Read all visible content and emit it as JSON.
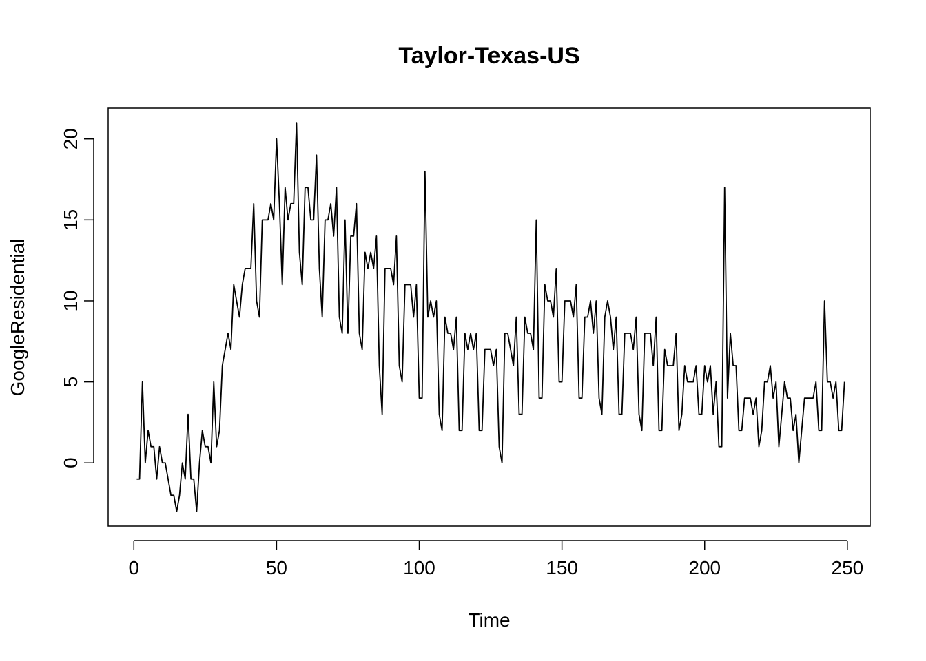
{
  "chart_data": {
    "type": "line",
    "title": "Taylor-Texas-US",
    "xlabel": "Time",
    "ylabel": "GoogleResidential",
    "xlim": [
      -9,
      258
    ],
    "ylim": [
      -3.9,
      21.9
    ],
    "x_ticks": [
      0,
      50,
      100,
      150,
      200,
      250
    ],
    "y_ticks": [
      0,
      5,
      10,
      15,
      20
    ],
    "grid": false,
    "legend": "none",
    "line_color": "#000000",
    "x_start": 1,
    "series": [
      {
        "values": [
          -1,
          -1,
          5,
          0,
          2,
          1,
          1,
          -1,
          1,
          0,
          0,
          -1,
          -2,
          -2,
          -3,
          -2,
          0,
          -1,
          3,
          -1,
          -1,
          -3,
          0,
          2,
          1,
          1,
          0,
          5,
          1,
          2,
          6,
          7,
          8,
          7,
          11,
          10,
          9,
          11,
          12,
          12,
          12,
          16,
          10,
          9,
          15,
          15,
          15,
          16,
          15,
          20,
          16,
          11,
          17,
          15,
          16,
          16,
          21,
          13,
          11,
          17,
          17,
          15,
          15,
          19,
          12,
          9,
          15,
          15,
          16,
          14,
          17,
          9,
          8,
          15,
          8,
          14,
          14,
          16,
          8,
          7,
          13,
          12,
          13,
          12,
          14,
          6,
          3,
          12,
          12,
          12,
          11,
          14,
          6,
          5,
          11,
          11,
          11,
          9,
          11,
          4,
          4,
          18,
          9,
          10,
          9,
          10,
          3,
          2,
          9,
          8,
          8,
          7,
          9,
          2,
          2,
          8,
          7,
          8,
          7,
          8,
          2,
          2,
          7,
          7,
          7,
          6,
          7,
          1,
          0,
          8,
          8,
          7,
          6,
          9,
          3,
          3,
          9,
          8,
          8,
          7,
          15,
          4,
          4,
          11,
          10,
          10,
          9,
          12,
          5,
          5,
          10,
          10,
          10,
          9,
          11,
          4,
          4,
          9,
          9,
          10,
          8,
          10,
          4,
          3,
          9,
          10,
          9,
          7,
          9,
          3,
          3,
          8,
          8,
          8,
          7,
          9,
          3,
          2,
          8,
          8,
          8,
          6,
          9,
          2,
          2,
          7,
          6,
          6,
          6,
          8,
          2,
          3,
          6,
          5,
          5,
          5,
          6,
          3,
          3,
          6,
          5,
          6,
          3,
          5,
          1,
          1,
          17,
          4,
          8,
          6,
          6,
          2,
          2,
          4,
          4,
          4,
          3,
          4,
          1,
          2,
          5,
          5,
          6,
          4,
          5,
          1,
          3,
          5,
          4,
          4,
          2,
          3,
          0,
          2,
          4,
          4,
          4,
          4,
          5,
          2,
          2,
          10,
          5,
          5,
          4,
          5,
          2,
          2,
          5
        ]
      }
    ]
  }
}
